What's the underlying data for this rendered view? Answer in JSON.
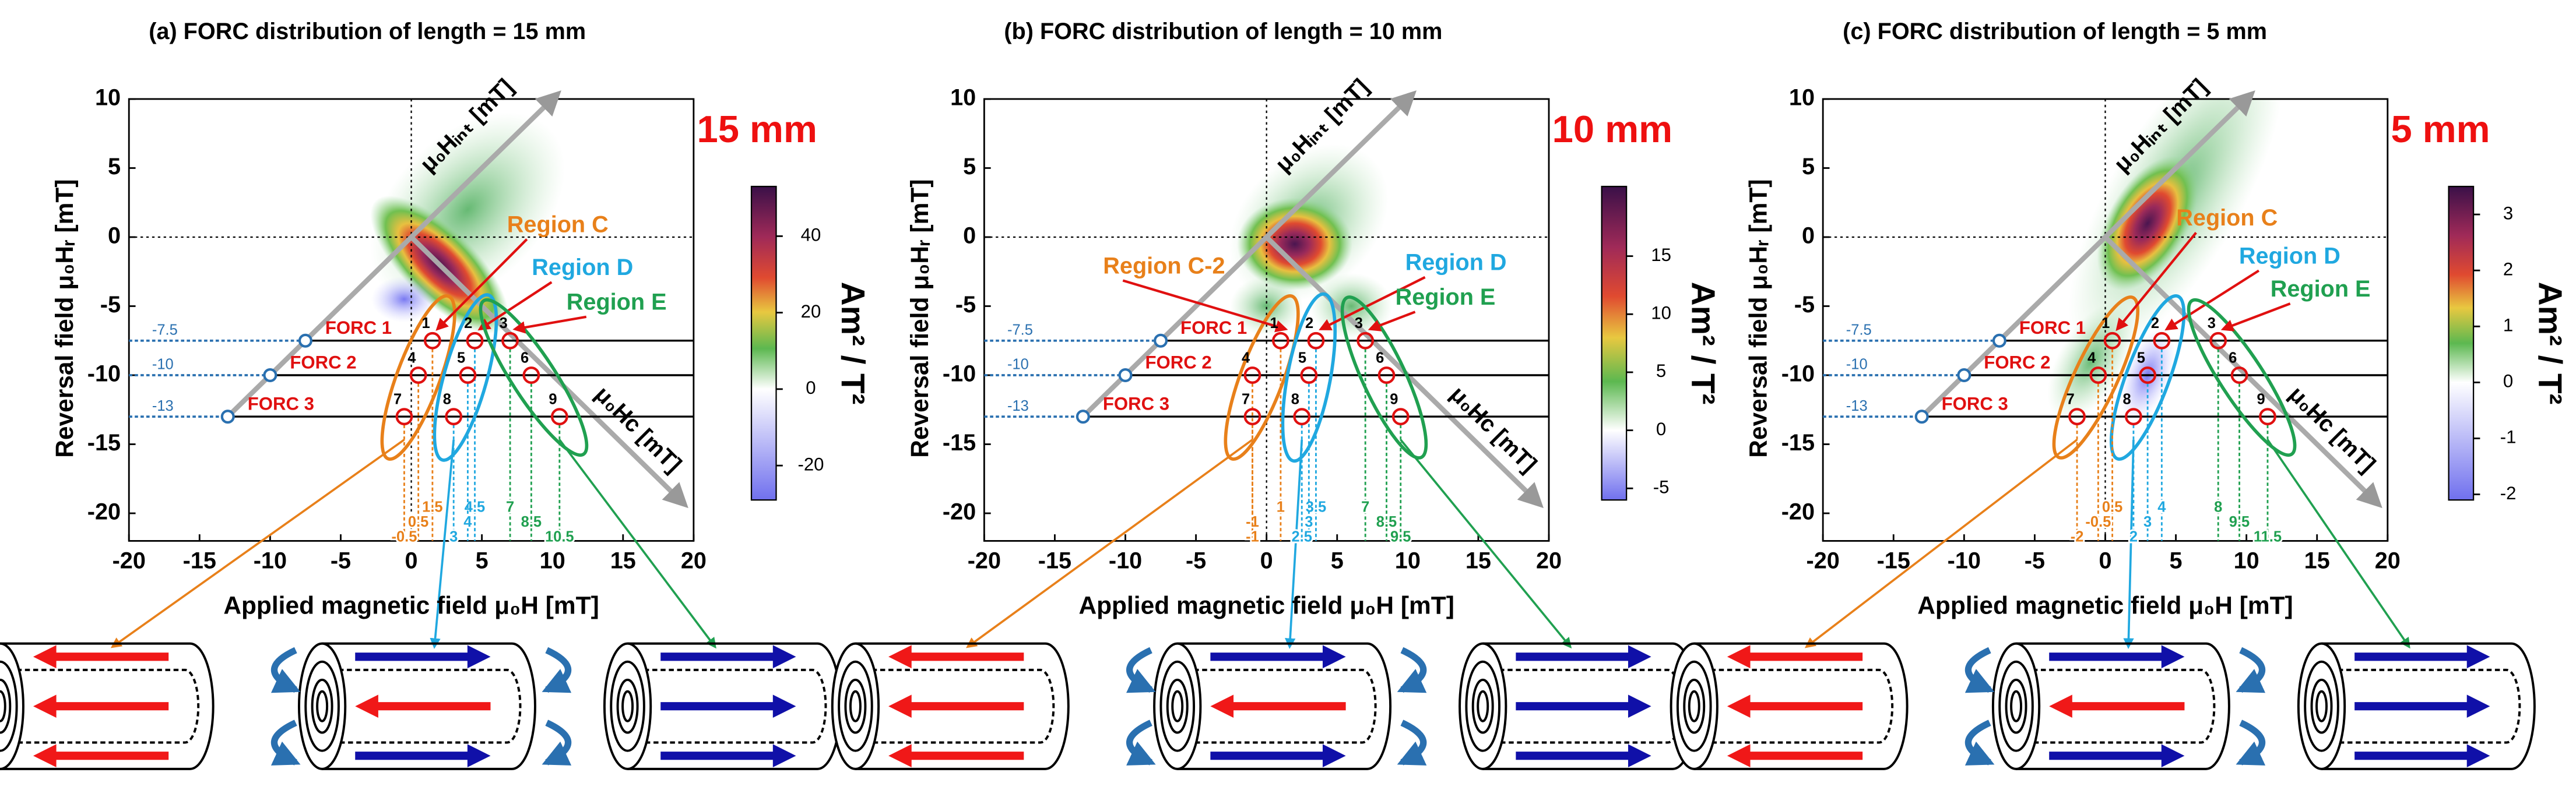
{
  "chart_data": [
    {
      "type": "forc",
      "title": "(a) FORC distribution of length = 15 mm",
      "length_label": "15 mm",
      "xlabel": "Applied magnetic field μ₀H [mT]",
      "ylabel": "Reversal field μ₀Hᵣ [mT]",
      "hint_label": "μ₀Hᵢₙₜ [mT]",
      "hc_label": "μ₀Hc [mT]",
      "xlim": [
        -20,
        20
      ],
      "xticks": [
        -20,
        -15,
        -10,
        -5,
        0,
        5,
        10,
        15,
        20
      ],
      "ylim": [
        -22,
        10
      ],
      "yticks": [
        -20,
        -15,
        -10,
        -5,
        0,
        5,
        10
      ],
      "colorbar": {
        "label": "Am² / T²",
        "lim": [
          -29,
          53
        ],
        "ticks": [
          -20,
          0,
          20,
          40
        ]
      },
      "forc": {
        "names": [
          "FORC 1",
          "FORC 2",
          "FORC 3"
        ],
        "values": [
          -7.5,
          -10,
          -13
        ]
      },
      "regions": [
        "Region C",
        "Region D",
        "Region E"
      ],
      "region_colors": [
        "#e8801a",
        "#20a8e0",
        "#20a050"
      ],
      "points": {
        "labels": [
          "1",
          "2",
          "3",
          "4",
          "5",
          "6",
          "7",
          "8",
          "9"
        ],
        "x": [
          1.5,
          4.5,
          7,
          0.5,
          4,
          8.5,
          -0.5,
          3,
          10.5
        ],
        "y": [
          -7.5,
          -7.5,
          -7.5,
          -10,
          -10,
          -10,
          -13,
          -13,
          -13
        ]
      }
    },
    {
      "type": "forc",
      "title": "(b) FORC distribution of length = 10 mm",
      "length_label": "10 mm",
      "xlabel": "Applied magnetic field μ₀H [mT]",
      "ylabel": "Reversal field μ₀Hᵣ [mT]",
      "hint_label": "μ₀Hᵢₙₜ [mT]",
      "hc_label": "μ₀Hc [mT]",
      "xlim": [
        -20,
        20
      ],
      "xticks": [
        -20,
        -15,
        -10,
        -5,
        0,
        5,
        10,
        15,
        20
      ],
      "ylim": [
        -22,
        10
      ],
      "yticks": [
        -20,
        -15,
        -10,
        -5,
        0,
        5,
        10
      ],
      "colorbar": {
        "label": "Am² / T²",
        "lim": [
          -6,
          21
        ],
        "ticks": [
          -5,
          0,
          5,
          10,
          15
        ]
      },
      "forc": {
        "names": [
          "FORC 1",
          "FORC 2",
          "FORC 3"
        ],
        "values": [
          -7.5,
          -10,
          -13
        ]
      },
      "regions": [
        "Region C-2",
        "Region D",
        "Region E"
      ],
      "region_colors": [
        "#e8801a",
        "#20a8e0",
        "#20a050"
      ],
      "points": {
        "labels": [
          "1",
          "2",
          "3",
          "4",
          "5",
          "6",
          "7",
          "8",
          "9"
        ],
        "x": [
          1,
          3.5,
          7,
          -1,
          3,
          8.5,
          -1,
          2.5,
          9.5
        ],
        "y": [
          -7.5,
          -7.5,
          -7.5,
          -10,
          -10,
          -10,
          -13,
          -13,
          -13
        ]
      }
    },
    {
      "type": "forc",
      "title": "(c) FORC distribution of length = 5 mm",
      "length_label": "5 mm",
      "xlabel": "Applied magnetic field μ₀H [mT]",
      "ylabel": "Reversal field μ₀Hᵣ [mT]",
      "hint_label": "μ₀Hᵢₙₜ [mT]",
      "hc_label": "μ₀Hc [mT]",
      "xlim": [
        -20,
        20
      ],
      "xticks": [
        -20,
        -15,
        -10,
        -5,
        0,
        5,
        10,
        15,
        20
      ],
      "ylim": [
        -22,
        10
      ],
      "yticks": [
        -20,
        -15,
        -10,
        -5,
        0,
        5,
        10
      ],
      "colorbar": {
        "label": "Am² / T²",
        "lim": [
          -2.1,
          3.5
        ],
        "ticks": [
          -2,
          -1,
          0,
          1,
          2,
          3
        ]
      },
      "forc": {
        "names": [
          "FORC 1",
          "FORC 2",
          "FORC 3"
        ],
        "values": [
          -7.5,
          -10,
          -13
        ]
      },
      "regions": [
        "Region C",
        "Region D",
        "Region E"
      ],
      "region_colors": [
        "#e8801a",
        "#20a8e0",
        "#20a050"
      ],
      "points": {
        "labels": [
          "1",
          "2",
          "3",
          "4",
          "5",
          "6",
          "7",
          "8",
          "9"
        ],
        "x": [
          0.5,
          4,
          8,
          -0.5,
          3,
          9.5,
          -2,
          2,
          11.5
        ],
        "y": [
          -7.5,
          -7.5,
          -7.5,
          -10,
          -10,
          -10,
          -13,
          -13,
          -13
        ]
      }
    }
  ]
}
